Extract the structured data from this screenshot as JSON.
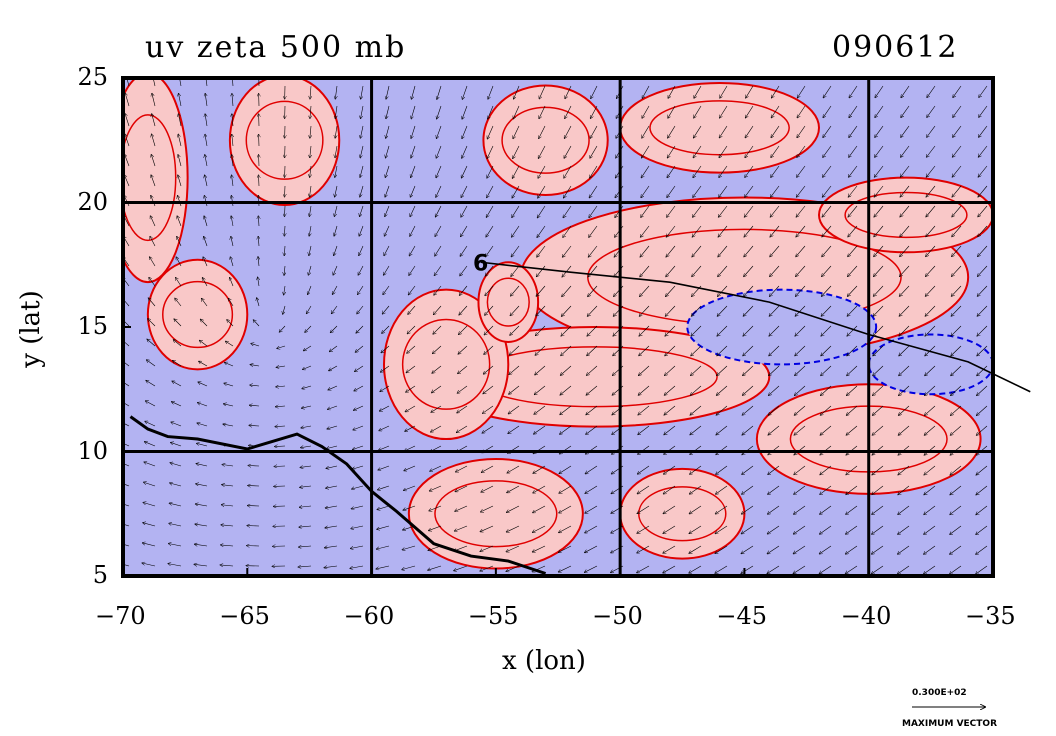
{
  "chart_data": {
    "type": "contour",
    "title": "uv zeta 500 mb",
    "date_label": "090612",
    "xlabel": "x (lon)",
    "ylabel": "y (lat)",
    "xlim": [
      -70,
      -35
    ],
    "ylim": [
      5,
      25
    ],
    "x_ticks": [
      "-70",
      "-65",
      "-60",
      "-55",
      "-50",
      "-45",
      "-40",
      "-35"
    ],
    "y_ticks": [
      "5",
      "10",
      "15",
      "20",
      "25"
    ],
    "grid": true,
    "grid_lines_lon": [
      -60,
      -50,
      -40
    ],
    "grid_lines_lat": [
      10,
      20
    ],
    "fill_colors": {
      "positive": "#f9c8c8",
      "negative": "#b3b3f2"
    },
    "contour_colors": {
      "positive": "#e00000",
      "negative": "#0000e0"
    },
    "storm_track_label": "6",
    "storm_track": [
      {
        "lon": -55.6,
        "lat": 17.6
      },
      {
        "lon": -52.0,
        "lat": 17.2
      },
      {
        "lon": -48.0,
        "lat": 16.8
      },
      {
        "lon": -44.0,
        "lat": 16.0
      },
      {
        "lon": -40.0,
        "lat": 14.7
      },
      {
        "lon": -36.0,
        "lat": 13.6
      },
      {
        "lon": -33.5,
        "lat": 12.4
      }
    ],
    "coastline": [
      {
        "lon": -69.7,
        "lat": 11.4
      },
      {
        "lon": -69.0,
        "lat": 10.9
      },
      {
        "lon": -68.2,
        "lat": 10.6
      },
      {
        "lon": -67.0,
        "lat": 10.5
      },
      {
        "lon": -65.0,
        "lat": 10.1
      },
      {
        "lon": -63.0,
        "lat": 10.7
      },
      {
        "lon": -62.0,
        "lat": 10.2
      },
      {
        "lon": -61.0,
        "lat": 9.5
      },
      {
        "lon": -60.0,
        "lat": 8.4
      },
      {
        "lon": -59.0,
        "lat": 7.6
      },
      {
        "lon": -57.5,
        "lat": 6.3
      },
      {
        "lon": -56.0,
        "lat": 5.8
      },
      {
        "lon": -54.5,
        "lat": 5.6
      },
      {
        "lon": -53.0,
        "lat": 5.1
      }
    ],
    "positive_regions": [
      {
        "lon": -69.0,
        "lat": 21.0,
        "rx": 1.6,
        "ry": 4.2
      },
      {
        "lon": -63.5,
        "lat": 22.5,
        "rx": 2.2,
        "ry": 2.6
      },
      {
        "lon": -67.0,
        "lat": 15.5,
        "rx": 2.0,
        "ry": 2.2
      },
      {
        "lon": -53.0,
        "lat": 22.5,
        "rx": 2.5,
        "ry": 2.2
      },
      {
        "lon": -46.0,
        "lat": 23.0,
        "rx": 4.0,
        "ry": 1.8
      },
      {
        "lon": -45.0,
        "lat": 17.0,
        "rx": 9.0,
        "ry": 3.2
      },
      {
        "lon": -51.0,
        "lat": 13.0,
        "rx": 7.0,
        "ry": 2.0
      },
      {
        "lon": -38.5,
        "lat": 19.5,
        "rx": 3.5,
        "ry": 1.5
      },
      {
        "lon": -57.0,
        "lat": 13.5,
        "rx": 2.5,
        "ry": 3.0
      },
      {
        "lon": -54.5,
        "lat": 16.0,
        "rx": 1.2,
        "ry": 1.6
      },
      {
        "lon": -40.0,
        "lat": 10.5,
        "rx": 4.5,
        "ry": 2.2
      },
      {
        "lon": -55.0,
        "lat": 7.5,
        "rx": 3.5,
        "ry": 2.2
      },
      {
        "lon": -47.5,
        "lat": 7.5,
        "rx": 2.5,
        "ry": 1.8
      }
    ],
    "negative_regions": [
      {
        "lon": -43.5,
        "lat": 15.0,
        "rx": 3.8,
        "ry": 1.5
      },
      {
        "lon": -37.5,
        "lat": 13.5,
        "rx": 2.5,
        "ry": 1.2
      }
    ],
    "wind_field_description_omitted": true,
    "reference_vector": {
      "value": "0.300E+02",
      "caption": "MAXIMUM VECTOR"
    }
  }
}
